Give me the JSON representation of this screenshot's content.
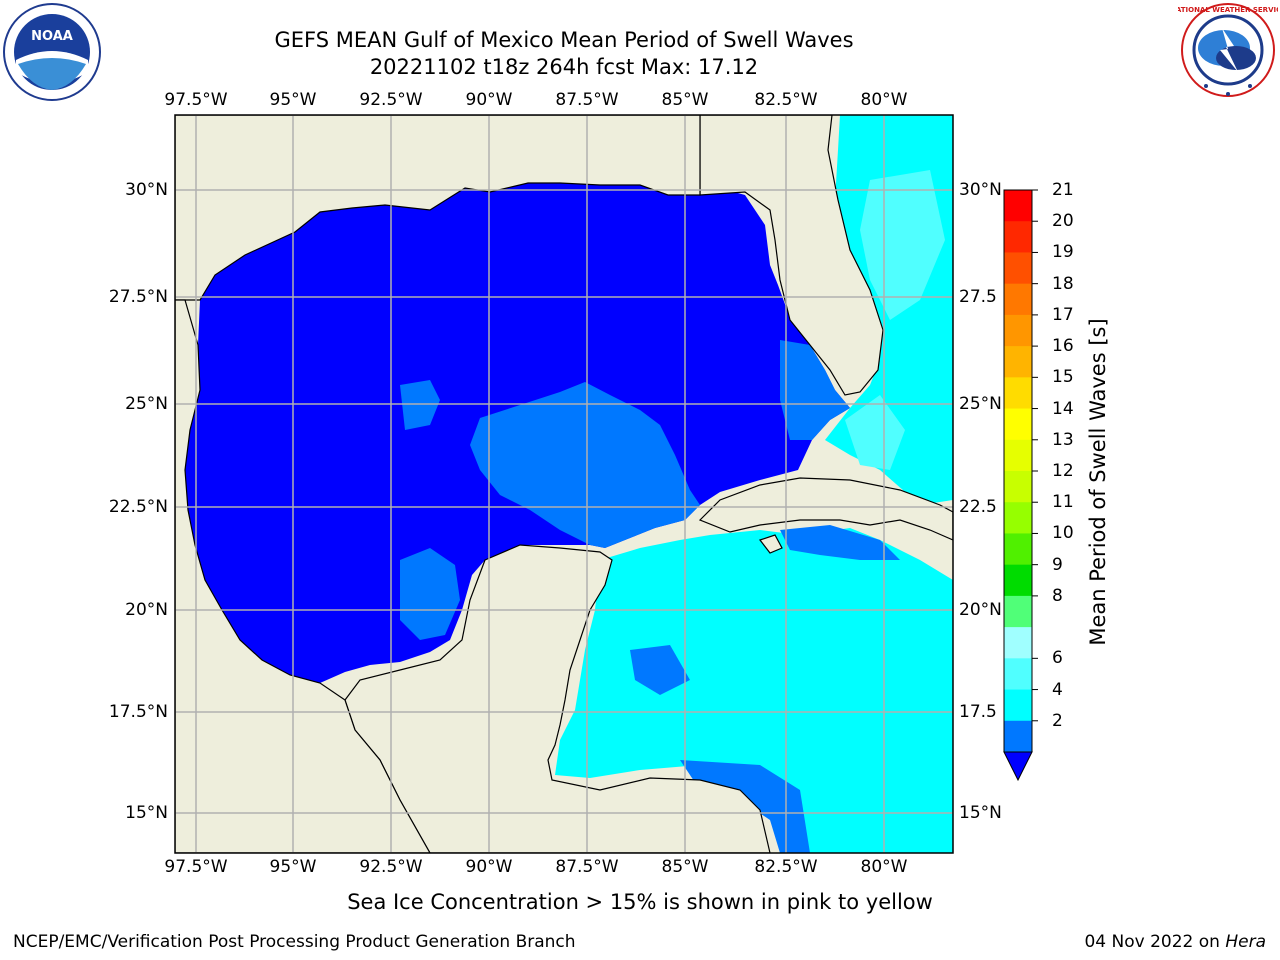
{
  "header": {
    "title_line1": "GEFS MEAN Gulf of Mexico Mean Period of Swell Waves",
    "title_line2": "20221102 t18z 264h fcst   Max: 17.12"
  },
  "map": {
    "lon_ticks": [
      "97.5°W",
      "95°W",
      "92.5°W",
      "90°W",
      "87.5°W",
      "85°W",
      "82.5°W",
      "80°W"
    ],
    "lat_ticks_left": [
      "30°N",
      "27.5°N",
      "25°N",
      "22.5°N",
      "20°N",
      "17.5°N",
      "15°N"
    ],
    "lat_ticks_right": [
      "30°N",
      "27.5",
      "25°N",
      "22.5",
      "20°N",
      "17.5",
      "15°N"
    ],
    "colors": {
      "land": "#eeeedc",
      "grid": "#b0b0b0",
      "ocean_low": "#0000ff"
    }
  },
  "colorbar": {
    "title": "Mean Period of Swell Waves [s]",
    "ticks": [
      "21",
      "20",
      "19",
      "18",
      "17",
      "16",
      "15",
      "14",
      "13",
      "12",
      "11",
      "10",
      "9",
      "8",
      "6",
      "4",
      "2"
    ],
    "bin_colors": [
      "#ff0000",
      "#ff2800",
      "#ff5000",
      "#ff7800",
      "#ff9600",
      "#ffb400",
      "#ffdc00",
      "#ffff00",
      "#e6ff00",
      "#c8ff00",
      "#96ff00",
      "#50f000",
      "#00dc00",
      "#50ff78",
      "#a0ffff",
      "#50ffff",
      "#00ffff",
      "#0078ff"
    ],
    "extend_color": "#0000ff"
  },
  "logos": {
    "noaa_text": "NOAA",
    "nws_text": "NATIONAL WEATHER SERVICE"
  },
  "footer": {
    "sea_ice_note": "Sea Ice Concentration > 15% is shown in pink to yellow",
    "left_credit": "NCEP/EMC/Verification Post Processing Product Generation Branch",
    "date": "04 Nov 2022 on",
    "machine": "Hera"
  }
}
